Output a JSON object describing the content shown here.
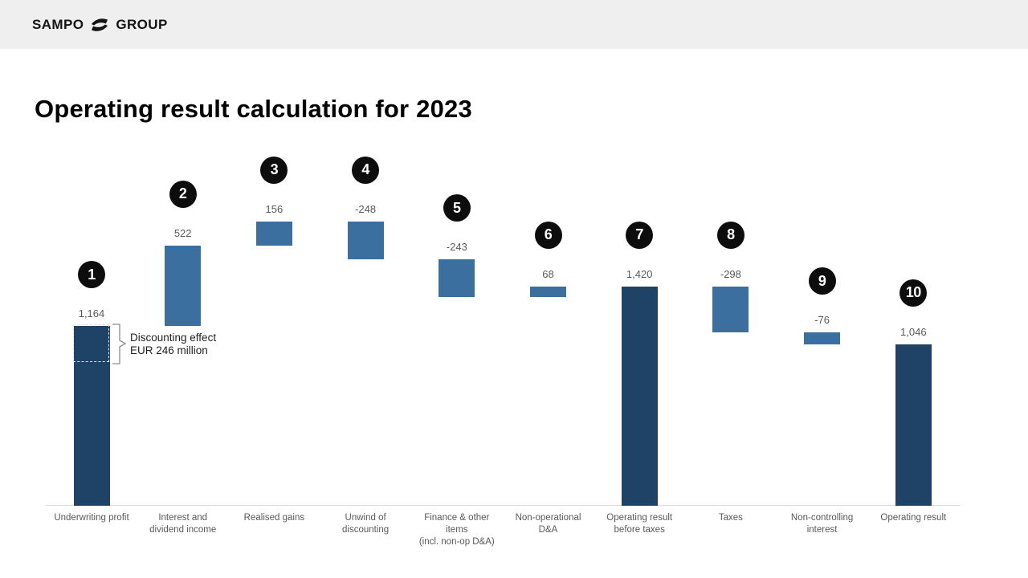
{
  "header": {
    "brand_left": "SAMPO",
    "brand_right": "GROUP"
  },
  "title": "Operating result calculation for 2023",
  "chart_data": {
    "type": "bar",
    "subtype": "waterfall",
    "title": "Operating result calculation for 2023",
    "unit": "EUR million",
    "xlabel": "",
    "ylabel": "",
    "grid": false,
    "legend": false,
    "categories": [
      "Underwriting profit",
      "Interest and dividend income",
      "Realised gains",
      "Unwind of discounting",
      "Finance & other items (incl. non-op D&A)",
      "Non-operational D&A",
      "Operating result before taxes",
      "Taxes",
      "Non-controlling interest",
      "Operating result"
    ],
    "bars": [
      {
        "badge": "1",
        "label_lines": [
          "Underwriting profit"
        ],
        "value": 1164,
        "display": "1,164",
        "kind": "total"
      },
      {
        "badge": "2",
        "label_lines": [
          "Interest and",
          "dividend income"
        ],
        "value": 522,
        "display": "522",
        "kind": "delta"
      },
      {
        "badge": "3",
        "label_lines": [
          "Realised gains"
        ],
        "value": 156,
        "display": "156",
        "kind": "delta"
      },
      {
        "badge": "4",
        "label_lines": [
          "Unwind of",
          "discounting"
        ],
        "value": -248,
        "display": "-248",
        "kind": "delta"
      },
      {
        "badge": "5",
        "label_lines": [
          "Finance & other",
          "items",
          "(incl. non-op D&A)"
        ],
        "value": -243,
        "display": "-243",
        "kind": "delta"
      },
      {
        "badge": "6",
        "label_lines": [
          "Non-operational",
          "D&A"
        ],
        "value": 68,
        "display": "68",
        "kind": "delta"
      },
      {
        "badge": "7",
        "label_lines": [
          "Operating result",
          "before taxes"
        ],
        "value": 1420,
        "display": "1,420",
        "kind": "total"
      },
      {
        "badge": "8",
        "label_lines": [
          "Taxes"
        ],
        "value": -298,
        "display": "-298",
        "kind": "delta"
      },
      {
        "badge": "9",
        "label_lines": [
          "Non-controlling",
          "interest"
        ],
        "value": -76,
        "display": "-76",
        "kind": "delta"
      },
      {
        "badge": "10",
        "label_lines": [
          "Operating result"
        ],
        "value": 1046,
        "display": "1,046",
        "kind": "total"
      }
    ],
    "annotation": {
      "line1": "Discounting effect",
      "line2": "EUR 246 million",
      "amount": 246,
      "target_category": "Underwriting profit"
    },
    "colors": {
      "total_bar": "#1f4366",
      "delta_bar": "#3b6fa0",
      "badge_bg": "#0d0d0d",
      "badge_text": "#ffffff",
      "value_text": "#595959",
      "axis_text": "#595959",
      "axis_line": "#d9d9d9",
      "header_bg": "#efeff0"
    }
  }
}
